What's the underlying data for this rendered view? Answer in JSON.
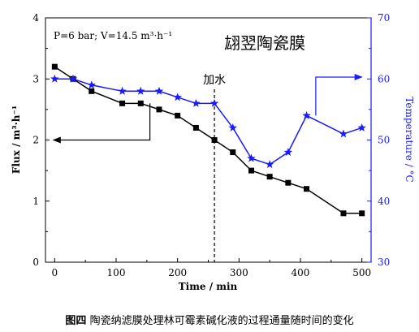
{
  "chart_data": {
    "type": "line",
    "xlabel": "Time / min",
    "xlim": [
      -15,
      515
    ],
    "xticks": [
      0,
      100,
      200,
      300,
      400,
      500
    ],
    "ylabel_left": "Flux / m³·h⁻¹",
    "ylim_left": [
      0,
      4
    ],
    "yticks_left": [
      0,
      1,
      2,
      3,
      4
    ],
    "ylabel_right": "Temperature / °C",
    "ylim_right": [
      30,
      70
    ],
    "yticks_right": [
      30,
      40,
      50,
      60,
      70
    ],
    "conditions_text": "P=6 bar;  V=14.5 m³·h⁻¹",
    "membrane_label": "翃翌陶瓷膜",
    "event_label": "加水",
    "event_x": 260,
    "colors": {
      "flux": "#000000",
      "temperature": "#1a1aff"
    },
    "series": [
      {
        "axis": "left",
        "marker": "square",
        "x": [
          0,
          30,
          60,
          110,
          140,
          170,
          200,
          230,
          260,
          290,
          320,
          350,
          380,
          410,
          470,
          500
        ],
        "y": [
          3.2,
          3.0,
          2.8,
          2.6,
          2.6,
          2.5,
          2.4,
          2.2,
          2.0,
          1.8,
          1.5,
          1.4,
          1.3,
          1.2,
          0.8,
          0.8
        ]
      },
      {
        "axis": "right",
        "marker": "star",
        "x": [
          0,
          30,
          60,
          110,
          140,
          170,
          200,
          230,
          260,
          290,
          320,
          350,
          380,
          410,
          470,
          500
        ],
        "y": [
          60,
          60,
          59,
          58,
          58,
          58,
          57,
          56,
          56,
          52,
          47,
          46,
          48,
          54,
          51,
          52
        ]
      }
    ]
  },
  "caption": {
    "figure_label": "图四",
    "text": "陶瓷纳滤膜处理林可霉素碱化液的过程通量随时间的变化"
  }
}
